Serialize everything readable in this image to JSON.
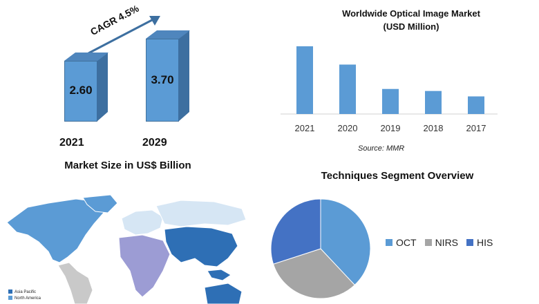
{
  "colors": {
    "bar_front": "#5b9bd5",
    "bar_side": "#3d6fa0",
    "oct": "#5b9bd5",
    "nirs": "#a5a5a5",
    "his": "#4472c4",
    "asia_pacific": "#2e6fb5",
    "north_america": "#5b9bd5"
  },
  "market_size": {
    "cagr_label": "CAGR 4.5%",
    "title": "Market Size in US$ Billion",
    "bars": [
      {
        "year": "2021",
        "value": 2.6,
        "label": "2.60"
      },
      {
        "year": "2029",
        "value": 3.7,
        "label": "3.70"
      }
    ]
  },
  "chart_data": [
    {
      "type": "bar",
      "title": "Worldwide Optical Image Market",
      "subtitle": "(USD Million)",
      "categories": [
        "2021",
        "2020",
        "2019",
        "2018",
        "2017"
      ],
      "values": [
        100,
        73,
        37,
        34,
        26
      ],
      "source": "Source: MMR"
    },
    {
      "type": "pie",
      "title": "Techniques Segment Overview",
      "categories": [
        "OCT",
        "NIRS",
        "HIS"
      ],
      "values": [
        38,
        32,
        30
      ]
    }
  ],
  "map": {
    "legend": [
      "Asia Pacific",
      "North America"
    ]
  }
}
